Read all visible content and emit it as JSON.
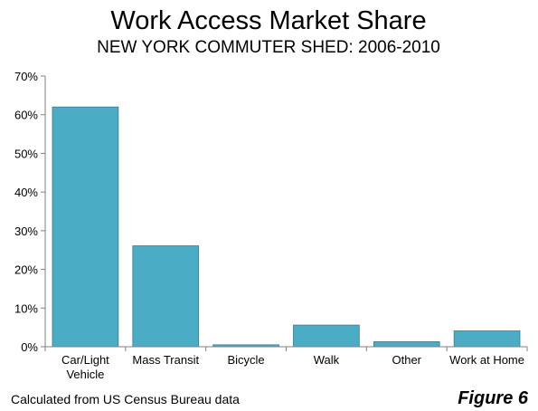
{
  "chart_data": {
    "type": "bar",
    "title": "Work Access Market Share",
    "subtitle": "NEW YORK COMMUTER SHED: 2006-2010",
    "categories": [
      "Car/Light Vehicle",
      "Mass Transit",
      "Bicycle",
      "Walk",
      "Other",
      "Work at Home"
    ],
    "category_lines": [
      [
        "Car/Light",
        "Vehicle"
      ],
      [
        "Mass Transit"
      ],
      [
        "Bicycle"
      ],
      [
        "Walk"
      ],
      [
        "Other"
      ],
      [
        "Work at Home"
      ]
    ],
    "values": [
      62.0,
      26.1,
      0.5,
      5.6,
      1.3,
      4.1
    ],
    "unit": "%",
    "ylim": [
      0,
      70
    ],
    "yticks": [
      0,
      10,
      20,
      30,
      40,
      50,
      60,
      70
    ],
    "ytick_labels": [
      "0%",
      "10%",
      "20%",
      "30%",
      "40%",
      "50%",
      "60%",
      "70%"
    ],
    "xlabel": "",
    "ylabel": "",
    "grid": false,
    "legend": "none",
    "bar_color": "#4BACC6",
    "bar_edge_color": "#357D93"
  },
  "footer": {
    "source": "Calculated from US Census Bureau data",
    "figure_label": "Figure 6"
  }
}
